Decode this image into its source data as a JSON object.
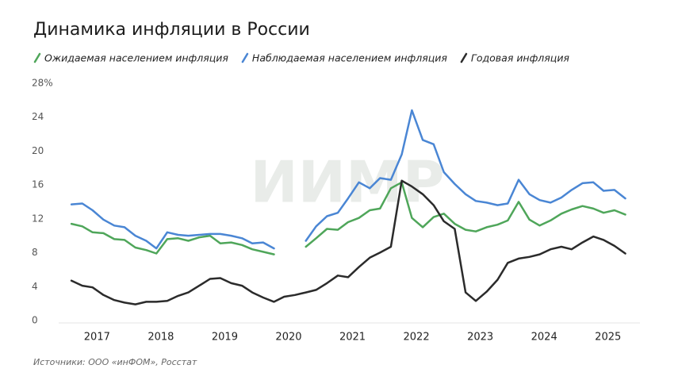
{
  "chart_data": {
    "type": "line",
    "title": "Динамика инфляции в России",
    "source": "Источники: ООО «инФОМ», Росстат",
    "watermark": "ИИМР",
    "x": [
      2017.1,
      2017.27,
      2017.43,
      2017.6,
      2017.77,
      2017.93,
      2018.1,
      2018.27,
      2018.43,
      2018.6,
      2018.77,
      2018.93,
      2019.1,
      2019.27,
      2019.43,
      2019.6,
      2019.77,
      2019.93,
      2020.1,
      2020.27,
      2020.43,
      2020.6,
      2020.77,
      2020.93,
      2021.1,
      2021.27,
      2021.43,
      2021.6,
      2021.77,
      2021.93,
      2022.1,
      2022.27,
      2022.43,
      2022.6,
      2022.77,
      2022.93,
      2023.1,
      2023.27,
      2023.43,
      2023.6,
      2023.77,
      2023.93,
      2024.1,
      2024.27,
      2024.43,
      2024.6,
      2024.77,
      2024.93,
      2025.1,
      2025.27,
      2025.43,
      2025.6,
      2025.77
    ],
    "series": [
      {
        "name": "Ожидаемая населением инфляция",
        "color": "#4fa65a",
        "values": [
          11.6,
          11.3,
          10.6,
          10.5,
          9.8,
          9.7,
          8.8,
          8.5,
          8.1,
          9.8,
          9.9,
          9.6,
          10.0,
          10.2,
          9.3,
          9.4,
          9.1,
          8.6,
          8.3,
          8.0,
          null,
          null,
          8.9,
          9.9,
          11.0,
          10.9,
          11.8,
          12.3,
          13.2,
          13.4,
          15.8,
          16.5,
          12.3,
          11.2,
          12.4,
          12.8,
          11.6,
          10.9,
          10.7,
          11.2,
          11.5,
          12.0,
          14.2,
          12.1,
          11.4,
          12.0,
          12.8,
          13.3,
          13.7,
          13.4,
          12.9,
          13.2,
          12.7
        ]
      },
      {
        "name": "Наблюдаемая населением инфляция",
        "color": "#4a86d4",
        "values": [
          13.9,
          14.0,
          13.2,
          12.1,
          11.4,
          11.2,
          10.2,
          9.6,
          8.7,
          10.6,
          10.3,
          10.2,
          10.3,
          10.4,
          10.4,
          10.2,
          9.9,
          9.3,
          9.4,
          8.7,
          null,
          null,
          9.6,
          11.3,
          12.5,
          12.9,
          14.6,
          16.5,
          15.8,
          17.0,
          16.8,
          19.8,
          25.0,
          21.5,
          21.0,
          17.7,
          16.3,
          15.1,
          14.3,
          14.1,
          13.8,
          14.0,
          16.8,
          15.1,
          14.4,
          14.1,
          14.7,
          15.6,
          16.4,
          16.5,
          15.5,
          15.6,
          14.6
        ]
      },
      {
        "name": "Годовая инфляция",
        "color": "#2b2b2b",
        "values": [
          4.9,
          4.3,
          4.1,
          3.2,
          2.6,
          2.3,
          2.1,
          2.4,
          2.4,
          2.5,
          3.1,
          3.5,
          4.3,
          5.1,
          5.2,
          4.6,
          4.3,
          3.5,
          2.9,
          2.4,
          3.0,
          3.2,
          3.5,
          3.8,
          4.6,
          5.5,
          5.3,
          6.5,
          7.6,
          8.2,
          8.9,
          16.7,
          16.0,
          15.1,
          13.8,
          11.9,
          11.0,
          3.5,
          2.5,
          3.6,
          5.0,
          7.0,
          7.5,
          7.7,
          8.0,
          8.6,
          8.9,
          8.6,
          9.4,
          10.1,
          9.7,
          9.0,
          8.1
        ]
      }
    ],
    "xlim": [
      2016.9,
      2026.0
    ],
    "xticks": [
      {
        "value": 2017.5,
        "label": "2017"
      },
      {
        "value": 2018.5,
        "label": "2018"
      },
      {
        "value": 2019.5,
        "label": "2019"
      },
      {
        "value": 2020.5,
        "label": "2020"
      },
      {
        "value": 2021.5,
        "label": "2021"
      },
      {
        "value": 2022.5,
        "label": "2022"
      },
      {
        "value": 2023.5,
        "label": "2023"
      },
      {
        "value": 2024.5,
        "label": "2024"
      },
      {
        "value": 2025.5,
        "label": "2025"
      }
    ],
    "ylim": [
      0,
      28
    ],
    "yticks": [
      0,
      4,
      8,
      12,
      16,
      20,
      24,
      {
        "value": 28,
        "label": "28%"
      }
    ],
    "grid": false
  }
}
